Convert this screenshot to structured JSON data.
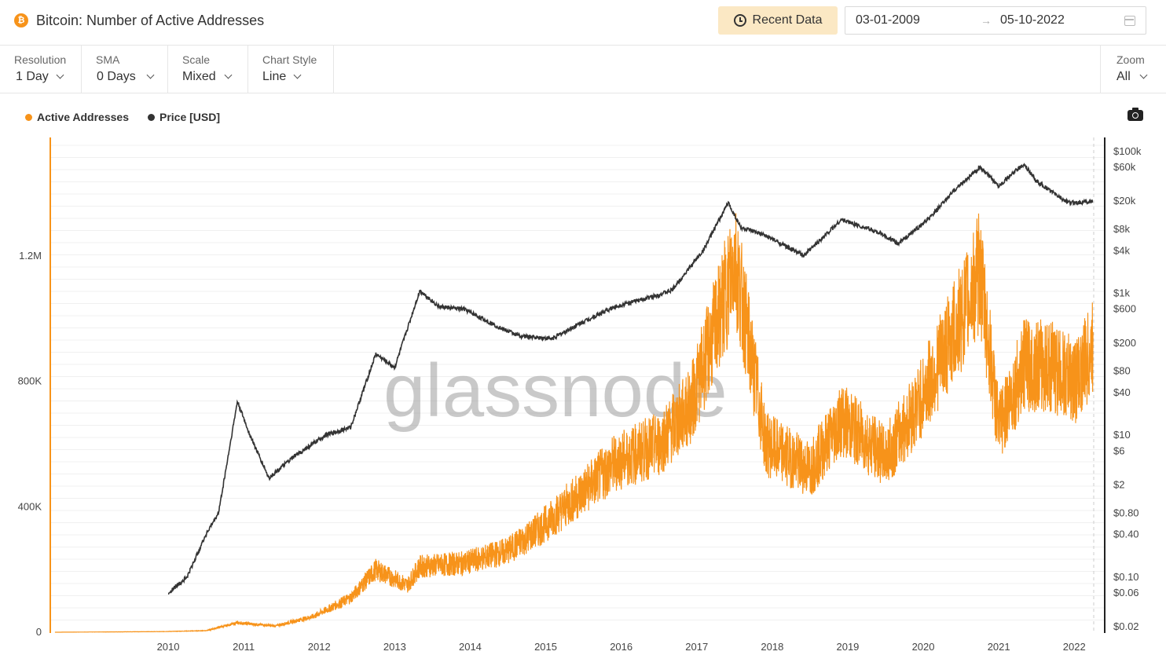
{
  "header": {
    "coin_symbol": "₿",
    "title": "Bitcoin: Number of Active Addresses",
    "recent_label": "Recent Data",
    "date_start": "03-01-2009",
    "date_arrow": "→",
    "date_end": "05-10-2022"
  },
  "controls": [
    {
      "label": "Resolution",
      "value": "1 Day"
    },
    {
      "label": "SMA",
      "value": "0 Days"
    },
    {
      "label": "Scale",
      "value": "Mixed"
    },
    {
      "label": "Chart Style",
      "value": "Line"
    }
  ],
  "zoom": {
    "label": "Zoom",
    "value": "All"
  },
  "legend": [
    {
      "name": "Active Addresses",
      "color": "#f7931a"
    },
    {
      "name": "Price [USD]",
      "color": "#333333"
    }
  ],
  "watermark": "glassnode",
  "chart_data": {
    "type": "line",
    "grid": true,
    "x_axis": {
      "type": "date",
      "ticks": [
        "2010",
        "2011",
        "2012",
        "2013",
        "2014",
        "2015",
        "2016",
        "2017",
        "2018",
        "2019",
        "2020",
        "2021",
        "2022"
      ],
      "range": [
        "2009-01-03",
        "2022-10-05"
      ]
    },
    "y_axis_left": {
      "label": "",
      "ticks": [
        "0",
        "400K",
        "800K",
        "1.2M"
      ],
      "range": [
        0,
        1500000
      ]
    },
    "y_axis_right": {
      "label": "",
      "scale": "log",
      "ticks": [
        "$100k",
        "$60k",
        "$20k",
        "$8k",
        "$4k",
        "$1k",
        "$600",
        "$200",
        "$80",
        "$40",
        "$10",
        "$6",
        "$2",
        "$0.80",
        "$0.40",
        "$0.10",
        "$0.06",
        "$0.02"
      ]
    },
    "series": [
      {
        "name": "Active Addresses",
        "axis": "left",
        "color": "#f7931a",
        "x": [
          "2009-01",
          "2010-06",
          "2011-01",
          "2011-06",
          "2011-12",
          "2012-06",
          "2012-12",
          "2013-04",
          "2013-09",
          "2013-11",
          "2014-06",
          "2015-01",
          "2015-06",
          "2016-01",
          "2016-06",
          "2017-01",
          "2017-06",
          "2017-12",
          "2018-01",
          "2018-06",
          "2019-01",
          "2019-06",
          "2020-01",
          "2020-06",
          "2021-01",
          "2021-04",
          "2021-07",
          "2021-11",
          "2022-03",
          "2022-07",
          "2022-10"
        ],
        "y": [
          0,
          2000,
          5000,
          30000,
          20000,
          50000,
          110000,
          200000,
          150000,
          210000,
          220000,
          260000,
          330000,
          450000,
          540000,
          600000,
          720000,
          1100000,
          1200000,
          600000,
          520000,
          680000,
          560000,
          720000,
          1000000,
          1150000,
          650000,
          850000,
          850000,
          800000,
          900000
        ]
      },
      {
        "name": "Price [USD]",
        "axis": "right",
        "color": "#333333",
        "x": [
          "2010-07",
          "2010-10",
          "2011-01",
          "2011-03",
          "2011-06",
          "2011-08",
          "2011-11",
          "2012-03",
          "2012-08",
          "2012-12",
          "2013-04",
          "2013-07",
          "2013-11",
          "2014-02",
          "2014-06",
          "2014-12",
          "2015-03",
          "2015-08",
          "2016-01",
          "2016-06",
          "2016-12",
          "2017-03",
          "2017-08",
          "2017-12",
          "2018-02",
          "2018-06",
          "2018-12",
          "2019-06",
          "2019-12",
          "2020-03",
          "2020-08",
          "2020-12",
          "2021-04",
          "2021-07",
          "2021-11",
          "2022-01",
          "2022-06",
          "2022-10"
        ],
        "y": [
          0.06,
          0.1,
          0.4,
          0.8,
          30,
          10,
          2.5,
          5,
          10,
          13,
          140,
          90,
          1100,
          650,
          600,
          320,
          250,
          230,
          400,
          650,
          900,
          1100,
          4000,
          19000,
          8500,
          6500,
          3400,
          11000,
          7200,
          5000,
          11500,
          29000,
          60000,
          33000,
          67000,
          38000,
          19000,
          19800
        ]
      }
    ]
  }
}
